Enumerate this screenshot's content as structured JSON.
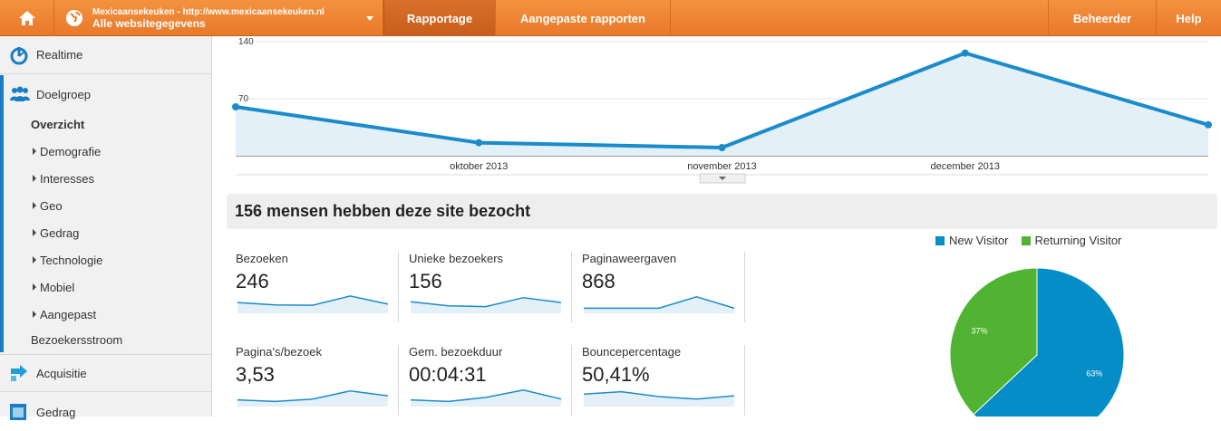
{
  "topbar": {
    "account_url": "Mexicaansekeuken - http://www.mexicaansekeuken.nl",
    "account_view": "Alle websitegegevens",
    "tabs": [
      {
        "label": "Rapportage",
        "active": true
      },
      {
        "label": "Aangepaste rapporten",
        "active": false
      }
    ],
    "beheerder": "Beheerder",
    "help": "Help"
  },
  "sidebar": {
    "realtime": "Realtime",
    "doelgroep": "Doelgroep",
    "overzicht": "Overzicht",
    "items": [
      "Demografie",
      "Interesses",
      "Geo",
      "Gedrag",
      "Technologie",
      "Mobiel",
      "Aangepast"
    ],
    "bezoekersstroom": "Bezoekersstroom",
    "acquisitie": "Acquisitie",
    "gedrag": "Gedrag"
  },
  "chart_data": [
    {
      "type": "area",
      "x": [
        "",
        "oktober 2013",
        "november 2013",
        "december 2013",
        ""
      ],
      "values": [
        60,
        16,
        10,
        126,
        38
      ],
      "y_ticks": [
        "140",
        "70"
      ],
      "ylim": [
        0,
        140
      ],
      "color": "#1b8ccb",
      "fill": "#e3f0f8"
    },
    {
      "type": "pie",
      "title": "",
      "legend": [
        "New Visitor",
        "Returning Visitor"
      ],
      "values": [
        63,
        37
      ],
      "labels": [
        "63%",
        "37%"
      ],
      "colors": [
        "#058dc7",
        "#50b432"
      ],
      "legend_position": "top"
    }
  ],
  "summary": {
    "headline": "156 mensen hebben deze site bezocht"
  },
  "metrics": [
    {
      "label": "Bezoeken",
      "value": "246",
      "spark": [
        0.55,
        0.4,
        0.38,
        0.95,
        0.45
      ]
    },
    {
      "label": "Unieke bezoekers",
      "value": "156",
      "spark": [
        0.6,
        0.35,
        0.3,
        0.85,
        0.55
      ]
    },
    {
      "label": "Paginaweergaven",
      "value": "868",
      "spark": [
        0.2,
        0.2,
        0.2,
        0.9,
        0.2
      ]
    },
    {
      "label": "Pagina's/bezoek",
      "value": "3,53",
      "spark": [
        0.3,
        0.2,
        0.35,
        0.85,
        0.55
      ]
    },
    {
      "label": "Gem. bezoekduur",
      "value": "00:04:31",
      "spark": [
        0.3,
        0.2,
        0.45,
        0.9,
        0.35
      ]
    },
    {
      "label": "Bouncepercentage",
      "value": "50,41%",
      "spark": [
        0.65,
        0.8,
        0.5,
        0.35,
        0.55
      ]
    }
  ]
}
